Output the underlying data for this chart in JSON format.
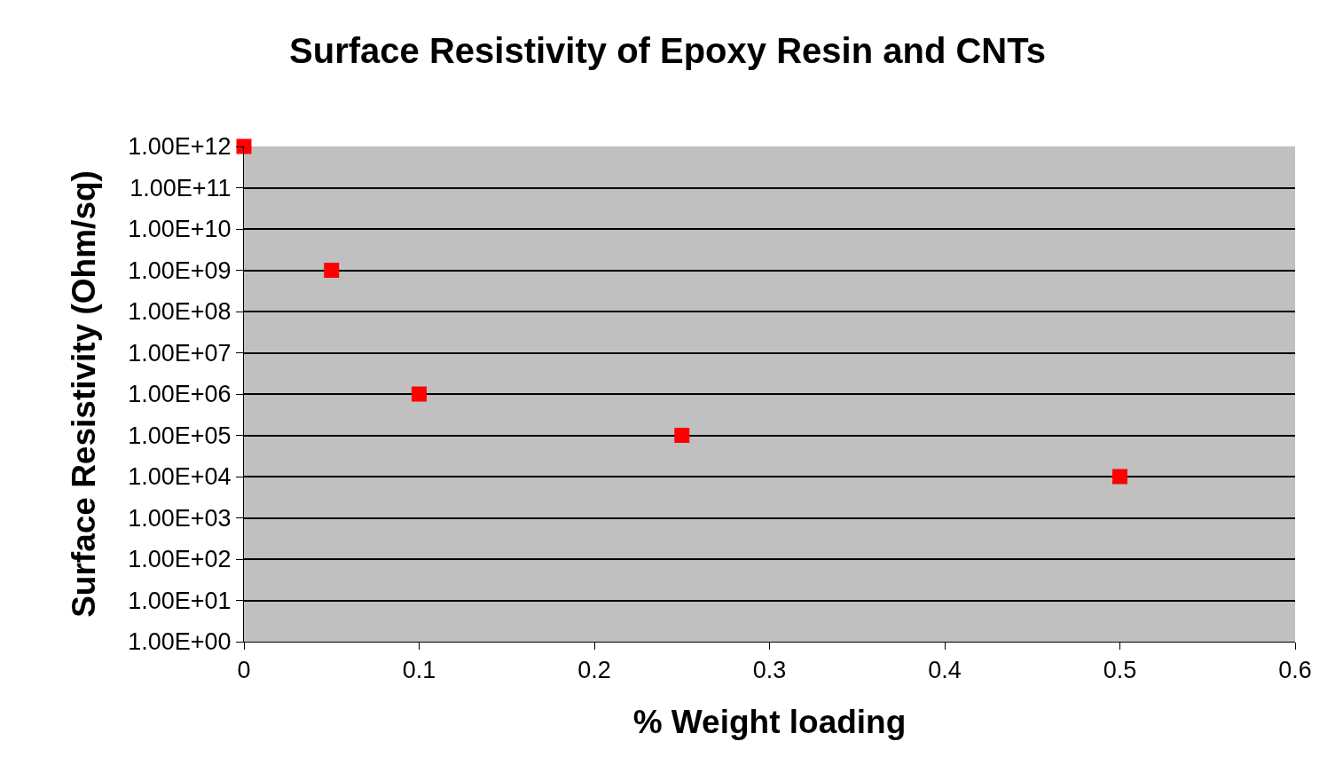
{
  "chart_data": {
    "type": "scatter",
    "title": "Surface Resistivity of Epoxy Resin and CNTs",
    "xlabel": "% Weight loading",
    "ylabel": "Surface Resistivity (Ohm/sq)",
    "x": [
      0,
      0.05,
      0.1,
      0.25,
      0.5
    ],
    "series": [
      {
        "color": "#ff0000",
        "values": [
          1000000000000.0,
          1000000000.0,
          1000000.0,
          100000.0,
          10000.0
        ]
      }
    ],
    "marker": "square",
    "log": "y",
    "grid": "y",
    "xlim": [
      0,
      0.6
    ],
    "xticks": [
      0,
      0.1,
      0.2,
      0.3,
      0.4,
      0.5,
      0.6
    ],
    "ylim": [
      1,
      1000000000000.0
    ],
    "yticks": [
      {
        "value": 1,
        "label": "1.00E+00"
      },
      {
        "value": 10,
        "label": "1.00E+01"
      },
      {
        "value": 100,
        "label": "1.00E+02"
      },
      {
        "value": 1000,
        "label": "1.00E+03"
      },
      {
        "value": 10000,
        "label": "1.00E+04"
      },
      {
        "value": 100000,
        "label": "1.00E+05"
      },
      {
        "value": 1000000,
        "label": "1.00E+06"
      },
      {
        "value": 10000000,
        "label": "1.00E+07"
      },
      {
        "value": 100000000,
        "label": "1.00E+08"
      },
      {
        "value": 1000000000,
        "label": "1.00E+09"
      },
      {
        "value": 10000000000,
        "label": "1.00E+10"
      },
      {
        "value": 100000000000,
        "label": "1.00E+11"
      },
      {
        "value": 1000000000000,
        "label": "1.00E+12"
      }
    ]
  }
}
